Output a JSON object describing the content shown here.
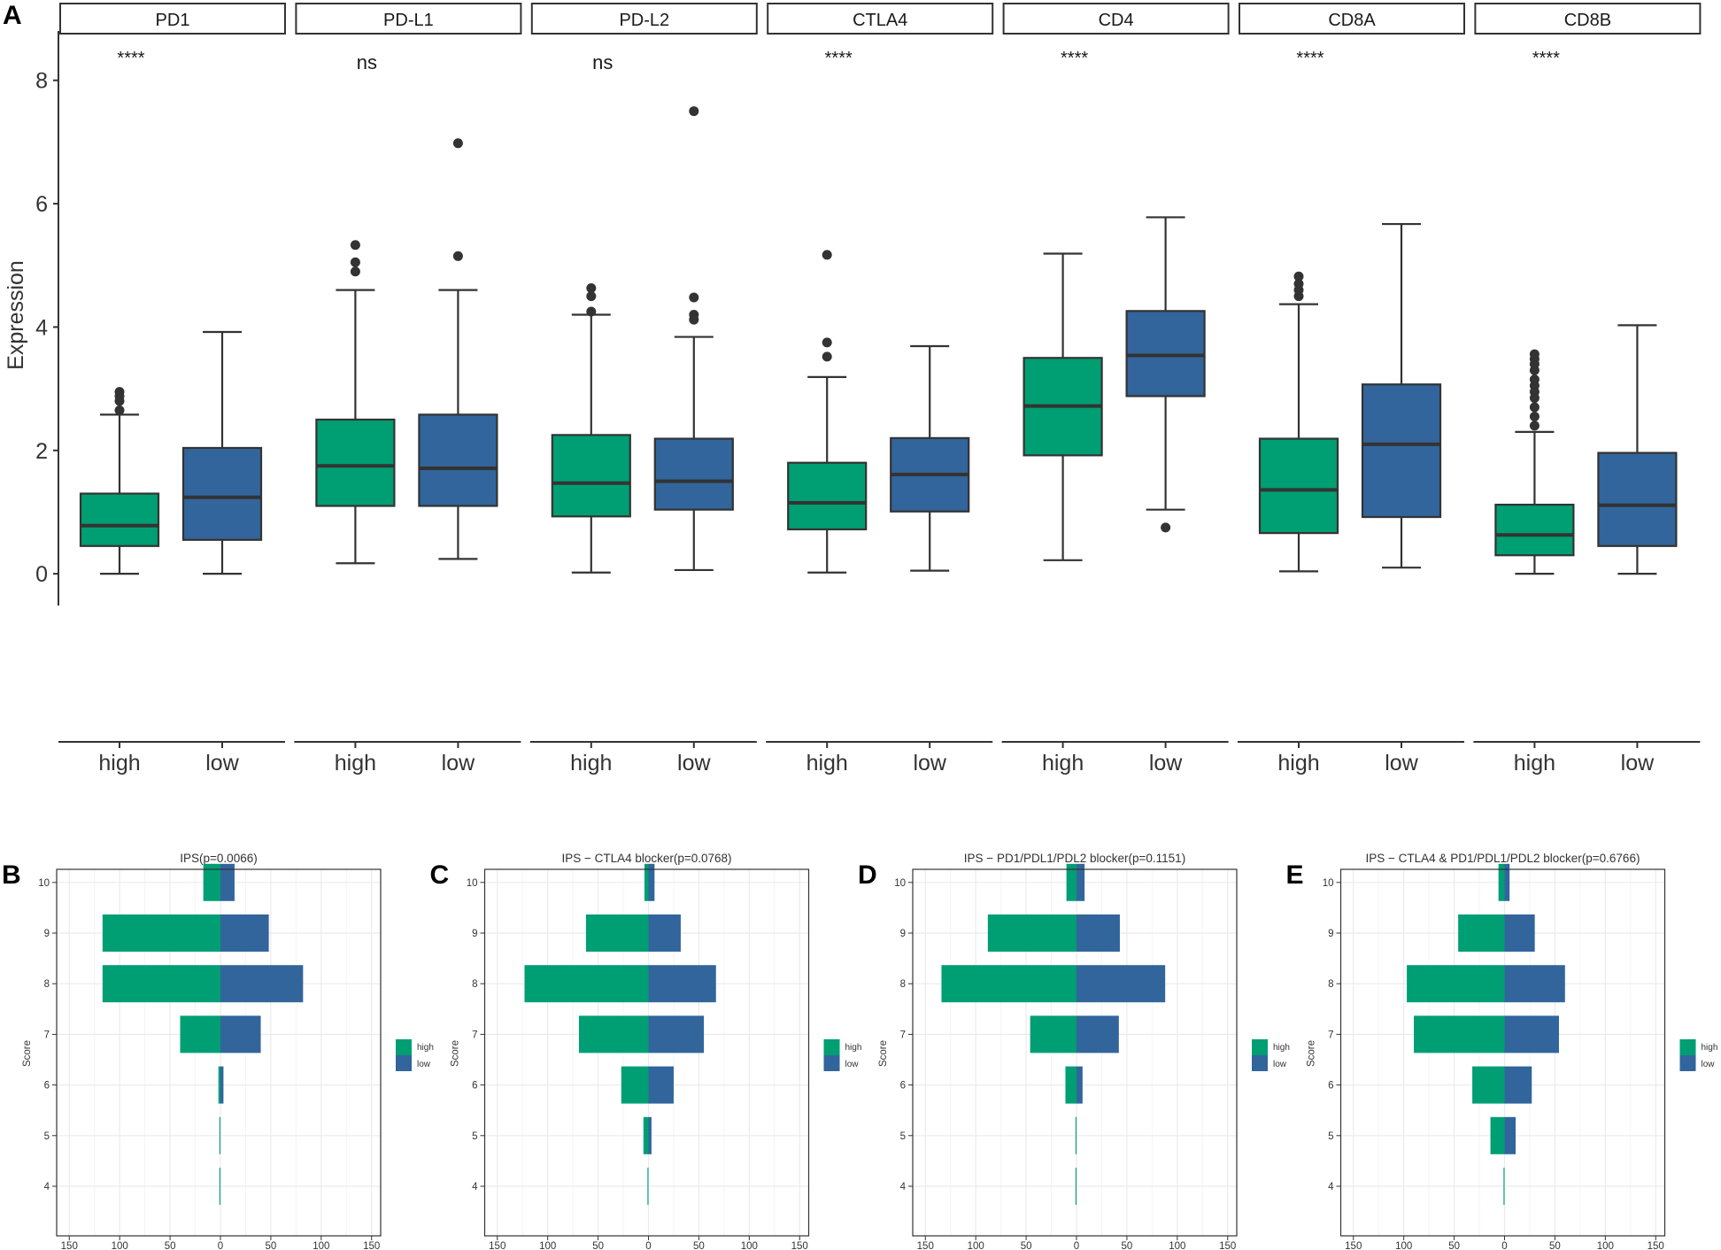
{
  "colors": {
    "high": "#009E73",
    "low": "#31659C",
    "box_line": "#333333",
    "grid": "#EBEBEB"
  },
  "chart_data": [
    {
      "panel": "A",
      "type": "box",
      "ylabel": "Expression",
      "ylim": [
        -0.4,
        8.8
      ],
      "yticks": [
        "0",
        "2",
        "4",
        "6",
        "8"
      ],
      "groups": [
        "high",
        "low"
      ],
      "facets": [
        {
          "name": "PD1",
          "signif": "****",
          "boxes": [
            {
              "group": "high",
              "min": 0.0,
              "q1": 0.45,
              "median": 0.78,
              "q3": 1.3,
              "max": 2.58,
              "outliers": [
                2.65,
                2.8,
                2.88,
                2.95
              ]
            },
            {
              "group": "low",
              "min": 0.0,
              "q1": 0.55,
              "median": 1.24,
              "q3": 2.04,
              "max": 3.92,
              "outliers": []
            }
          ]
        },
        {
          "name": "PD-L1",
          "signif": "ns",
          "boxes": [
            {
              "group": "high",
              "min": 0.17,
              "q1": 1.1,
              "median": 1.75,
              "q3": 2.5,
              "max": 4.6,
              "outliers": [
                4.9,
                5.05,
                5.33
              ]
            },
            {
              "group": "low",
              "min": 0.24,
              "q1": 1.1,
              "median": 1.71,
              "q3": 2.58,
              "max": 4.6,
              "outliers": [
                5.15,
                6.98
              ]
            }
          ]
        },
        {
          "name": "PD-L2",
          "signif": "ns",
          "boxes": [
            {
              "group": "high",
              "min": 0.02,
              "q1": 0.93,
              "median": 1.47,
              "q3": 2.25,
              "max": 4.2,
              "outliers": [
                4.25,
                4.5,
                4.63
              ]
            },
            {
              "group": "low",
              "min": 0.06,
              "q1": 1.04,
              "median": 1.5,
              "q3": 2.19,
              "max": 3.84,
              "outliers": [
                4.12,
                4.2,
                4.48,
                7.5
              ]
            }
          ]
        },
        {
          "name": "CTLA4",
          "signif": "****",
          "boxes": [
            {
              "group": "high",
              "min": 0.02,
              "q1": 0.72,
              "median": 1.15,
              "q3": 1.8,
              "max": 3.19,
              "outliers": [
                3.52,
                3.75,
                5.17
              ]
            },
            {
              "group": "low",
              "min": 0.05,
              "q1": 1.01,
              "median": 1.61,
              "q3": 2.2,
              "max": 3.69,
              "outliers": []
            }
          ]
        },
        {
          "name": "CD4",
          "signif": "****",
          "boxes": [
            {
              "group": "high",
              "min": 0.22,
              "q1": 1.92,
              "median": 2.72,
              "q3": 3.5,
              "max": 5.19,
              "outliers": []
            },
            {
              "group": "low",
              "min": 1.04,
              "q1": 2.88,
              "median": 3.54,
              "q3": 4.26,
              "max": 5.78,
              "outliers": [
                0.75
              ]
            }
          ]
        },
        {
          "name": "CD8A",
          "signif": "****",
          "boxes": [
            {
              "group": "high",
              "min": 0.04,
              "q1": 0.66,
              "median": 1.36,
              "q3": 2.19,
              "max": 4.37,
              "outliers": [
                4.5,
                4.6,
                4.7,
                4.82
              ]
            },
            {
              "group": "low",
              "min": 0.1,
              "q1": 0.92,
              "median": 2.1,
              "q3": 3.07,
              "max": 5.67,
              "outliers": []
            }
          ]
        },
        {
          "name": "CD8B",
          "signif": "****",
          "boxes": [
            {
              "group": "high",
              "min": 0.0,
              "q1": 0.3,
              "median": 0.63,
              "q3": 1.12,
              "max": 2.3,
              "outliers": [
                2.4,
                2.55,
                2.7,
                2.85,
                2.95,
                3.05,
                3.15,
                3.3,
                3.4,
                3.48,
                3.56
              ]
            },
            {
              "group": "low",
              "min": 0.0,
              "q1": 0.45,
              "median": 1.11,
              "q3": 1.96,
              "max": 4.03,
              "outliers": []
            }
          ]
        }
      ]
    },
    {
      "panel": "B",
      "type": "bar",
      "orientation": "horizontal-diverging",
      "title": "IPS(p=0.0066)",
      "ylabel": "Score",
      "categories": [
        "4",
        "5",
        "6",
        "7",
        "8",
        "9",
        "10"
      ],
      "series": [
        {
          "name": "high",
          "values": [
            1,
            1,
            2,
            40,
            117,
            117,
            17
          ]
        },
        {
          "name": "low",
          "values": [
            0,
            0,
            3,
            40,
            82,
            48,
            14
          ]
        }
      ],
      "xticks": [
        "150",
        "100",
        "50",
        "0",
        "50",
        "100",
        "150"
      ],
      "xlim": [
        -150,
        150
      ],
      "legend": [
        "high",
        "low"
      ]
    },
    {
      "panel": "C",
      "type": "bar",
      "orientation": "horizontal-diverging",
      "title": "IPS − CTLA4 blocker(p=0.0768)",
      "ylabel": "Score",
      "categories": [
        "4",
        "5",
        "6",
        "7",
        "8",
        "9",
        "10"
      ],
      "series": [
        {
          "name": "high",
          "values": [
            1,
            5,
            27,
            69,
            123,
            62,
            4
          ]
        },
        {
          "name": "low",
          "values": [
            0,
            3,
            25,
            55,
            67,
            32,
            6
          ]
        }
      ],
      "xticks": [
        "150",
        "100",
        "50",
        "0",
        "50",
        "100",
        "150"
      ],
      "xlim": [
        -150,
        150
      ],
      "legend": [
        "high",
        "low"
      ]
    },
    {
      "panel": "D",
      "type": "bar",
      "orientation": "horizontal-diverging",
      "title": "IPS − PD1/PDL1/PDL2 blocker(p=0.1151)",
      "ylabel": "Score",
      "categories": [
        "4",
        "5",
        "6",
        "7",
        "8",
        "9",
        "10"
      ],
      "series": [
        {
          "name": "high",
          "values": [
            1,
            1,
            11,
            46,
            134,
            88,
            10
          ]
        },
        {
          "name": "low",
          "values": [
            0,
            0,
            6,
            42,
            88,
            43,
            8
          ]
        }
      ],
      "xticks": [
        "150",
        "100",
        "50",
        "0",
        "50",
        "100",
        "150"
      ],
      "xlim": [
        -150,
        150
      ],
      "legend": [
        "high",
        "low"
      ]
    },
    {
      "panel": "E",
      "type": "bar",
      "orientation": "horizontal-diverging",
      "title": "IPS − CTLA4 & PD1/PDL1/PDL2 blocker(p=0.6766)",
      "ylabel": "Score",
      "categories": [
        "4",
        "5",
        "6",
        "7",
        "8",
        "9",
        "10"
      ],
      "series": [
        {
          "name": "high",
          "values": [
            1,
            14,
            32,
            90,
            97,
            46,
            6
          ]
        },
        {
          "name": "low",
          "values": [
            0,
            11,
            27,
            54,
            60,
            30,
            5
          ]
        }
      ],
      "xticks": [
        "150",
        "100",
        "50",
        "0",
        "50",
        "100",
        "150"
      ],
      "xlim": [
        -150,
        150
      ],
      "legend": [
        "high",
        "low"
      ]
    }
  ]
}
